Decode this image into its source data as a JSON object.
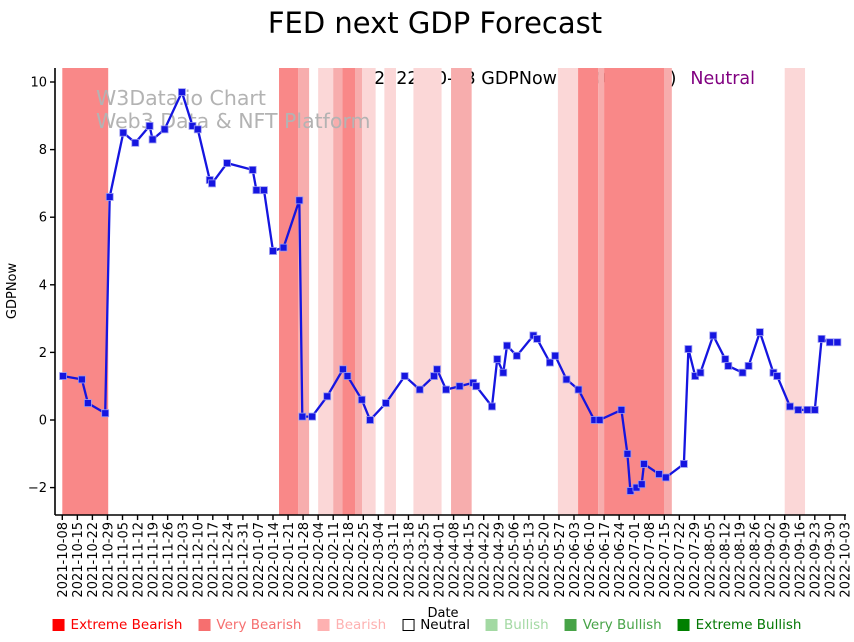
{
  "title": "FED next GDP Forecast",
  "annotation": {
    "text": "2022-10-03 GDPNow: 2.30 (-4.2%)",
    "sentiment": "Neutral",
    "sentiment_color": "#800080"
  },
  "watermark": {
    "line1": "W3Data.io Chart",
    "line2": "Web3 Data & NFT Platform"
  },
  "chart_data": {
    "type": "line",
    "title": "FED next GDP Forecast",
    "xlabel": "Date",
    "ylabel": "GDPNow",
    "ylim": [
      -2.8,
      10.4
    ],
    "yticks": [
      -2,
      0,
      2,
      4,
      6,
      8,
      10
    ],
    "grid": false,
    "legend_position": "bottom",
    "line_color": "#1515e0",
    "marker": "square",
    "x_tick_labels": [
      "2021-10-08",
      "2021-10-15",
      "2021-10-22",
      "2021-10-29",
      "2021-11-05",
      "2021-11-12",
      "2021-11-19",
      "2021-11-26",
      "2021-12-03",
      "2021-12-10",
      "2021-12-17",
      "2021-12-24",
      "2021-12-31",
      "2022-01-07",
      "2022-01-14",
      "2022-01-21",
      "2022-01-28",
      "2022-02-04",
      "2022-02-11",
      "2022-02-18",
      "2022-02-25",
      "2022-03-04",
      "2022-03-11",
      "2022-03-18",
      "2022-03-25",
      "2022-04-01",
      "2022-04-08",
      "2022-04-15",
      "2022-04-22",
      "2022-04-29",
      "2022-05-06",
      "2022-05-13",
      "2022-05-20",
      "2022-05-27",
      "2022-06-03",
      "2022-06-10",
      "2022-06-17",
      "2022-06-24",
      "2022-07-01",
      "2022-07-08",
      "2022-07-15",
      "2022-07-22",
      "2022-07-29",
      "2022-08-05",
      "2022-08-12",
      "2022-08-19",
      "2022-08-26",
      "2022-09-02",
      "2022-09-09",
      "2022-09-16",
      "2022-09-23",
      "2022-09-30",
      "2022-10-03"
    ],
    "series": [
      {
        "name": "GDPNow",
        "points": [
          [
            0.05,
            1.3
          ],
          [
            1.3,
            1.2
          ],
          [
            1.7,
            0.5
          ],
          [
            2.85,
            0.2
          ],
          [
            3.15,
            6.6
          ],
          [
            4.05,
            8.5
          ],
          [
            4.85,
            8.2
          ],
          [
            5.8,
            8.7
          ],
          [
            6.0,
            8.3
          ],
          [
            6.8,
            8.6
          ],
          [
            7.95,
            9.7
          ],
          [
            8.65,
            8.7
          ],
          [
            9.0,
            8.6
          ],
          [
            9.8,
            7.1
          ],
          [
            9.95,
            7.0
          ],
          [
            10.95,
            7.6
          ],
          [
            12.65,
            7.4
          ],
          [
            12.9,
            6.8
          ],
          [
            13.4,
            6.8
          ],
          [
            14.0,
            5.0
          ],
          [
            14.7,
            5.1
          ],
          [
            15.75,
            6.5
          ],
          [
            15.95,
            0.1
          ],
          [
            16.6,
            0.1
          ],
          [
            17.6,
            0.7
          ],
          [
            18.65,
            1.5
          ],
          [
            18.95,
            1.3
          ],
          [
            19.9,
            0.6
          ],
          [
            20.45,
            0.0
          ],
          [
            21.5,
            0.5
          ],
          [
            22.75,
            1.3
          ],
          [
            23.75,
            0.9
          ],
          [
            24.7,
            1.3
          ],
          [
            24.9,
            1.5
          ],
          [
            25.5,
            0.9
          ],
          [
            26.4,
            1.0
          ],
          [
            27.3,
            1.1
          ],
          [
            27.5,
            1.0
          ],
          [
            28.55,
            0.4
          ],
          [
            28.9,
            1.8
          ],
          [
            29.3,
            1.4
          ],
          [
            29.55,
            2.2
          ],
          [
            30.2,
            1.9
          ],
          [
            31.3,
            2.5
          ],
          [
            31.55,
            2.4
          ],
          [
            32.4,
            1.7
          ],
          [
            32.75,
            1.9
          ],
          [
            33.5,
            1.2
          ],
          [
            34.3,
            0.9
          ],
          [
            35.35,
            0.0
          ],
          [
            35.7,
            0.0
          ],
          [
            37.15,
            0.3
          ],
          [
            37.55,
            -1.0
          ],
          [
            37.75,
            -2.1
          ],
          [
            38.15,
            -2.0
          ],
          [
            38.5,
            -1.9
          ],
          [
            38.65,
            -1.3
          ],
          [
            39.65,
            -1.6
          ],
          [
            40.1,
            -1.7
          ],
          [
            41.3,
            -1.3
          ],
          [
            41.6,
            2.1
          ],
          [
            42.05,
            1.3
          ],
          [
            42.4,
            1.4
          ],
          [
            43.25,
            2.5
          ],
          [
            44.05,
            1.8
          ],
          [
            44.25,
            1.6
          ],
          [
            45.2,
            1.4
          ],
          [
            45.6,
            1.6
          ],
          [
            46.35,
            2.6
          ],
          [
            47.25,
            1.4
          ],
          [
            47.5,
            1.3
          ],
          [
            48.35,
            0.4
          ],
          [
            48.9,
            0.3
          ],
          [
            49.5,
            0.3
          ],
          [
            50.0,
            0.3
          ],
          [
            50.45,
            2.4
          ],
          [
            51.0,
            2.3
          ],
          [
            51.5,
            2.3
          ]
        ]
      }
    ],
    "band_colors": {
      "vb": "#f98888",
      "md": "#f7adad",
      "lt": "#fbd7d7"
    },
    "bands": [
      [
        0,
        3.05,
        "vb"
      ],
      [
        14.4,
        15.68,
        "vb"
      ],
      [
        15.68,
        16.4,
        "md"
      ],
      [
        17.0,
        18.0,
        "lt"
      ],
      [
        18.0,
        18.62,
        "md"
      ],
      [
        18.62,
        19.45,
        "vb"
      ],
      [
        19.45,
        19.93,
        "md"
      ],
      [
        19.93,
        20.82,
        "lt"
      ],
      [
        21.4,
        22.17,
        "lt"
      ],
      [
        23.33,
        25.2,
        "lt"
      ],
      [
        25.83,
        27.2,
        "md"
      ],
      [
        32.93,
        34.27,
        "lt"
      ],
      [
        34.27,
        35.6,
        "vb"
      ],
      [
        35.6,
        36.0,
        "md"
      ],
      [
        36.0,
        39.98,
        "vb"
      ],
      [
        39.98,
        40.5,
        "md"
      ],
      [
        48.0,
        49.35,
        "lt"
      ]
    ],
    "legend": [
      {
        "label": "Extreme Bearish",
        "color": "#ff0000",
        "text_color": "#fb0000"
      },
      {
        "label": "Very Bearish",
        "color": "#f66f6f",
        "text_color": "#f66f6f"
      },
      {
        "label": "Bearish",
        "color": "#feb1b1",
        "text_color": "#feb1b1"
      },
      {
        "label": "Neutral",
        "color": "#ffffff",
        "text_color": "#000000",
        "border": "#000000"
      },
      {
        "label": "Bullish",
        "color": "#a3d9a3",
        "text_color": "#a3d9a3"
      },
      {
        "label": "Very Bullish",
        "color": "#47a347",
        "text_color": "#47a347"
      },
      {
        "label": "Extreme Bullish",
        "color": "#008000",
        "text_color": "#047804"
      }
    ]
  }
}
